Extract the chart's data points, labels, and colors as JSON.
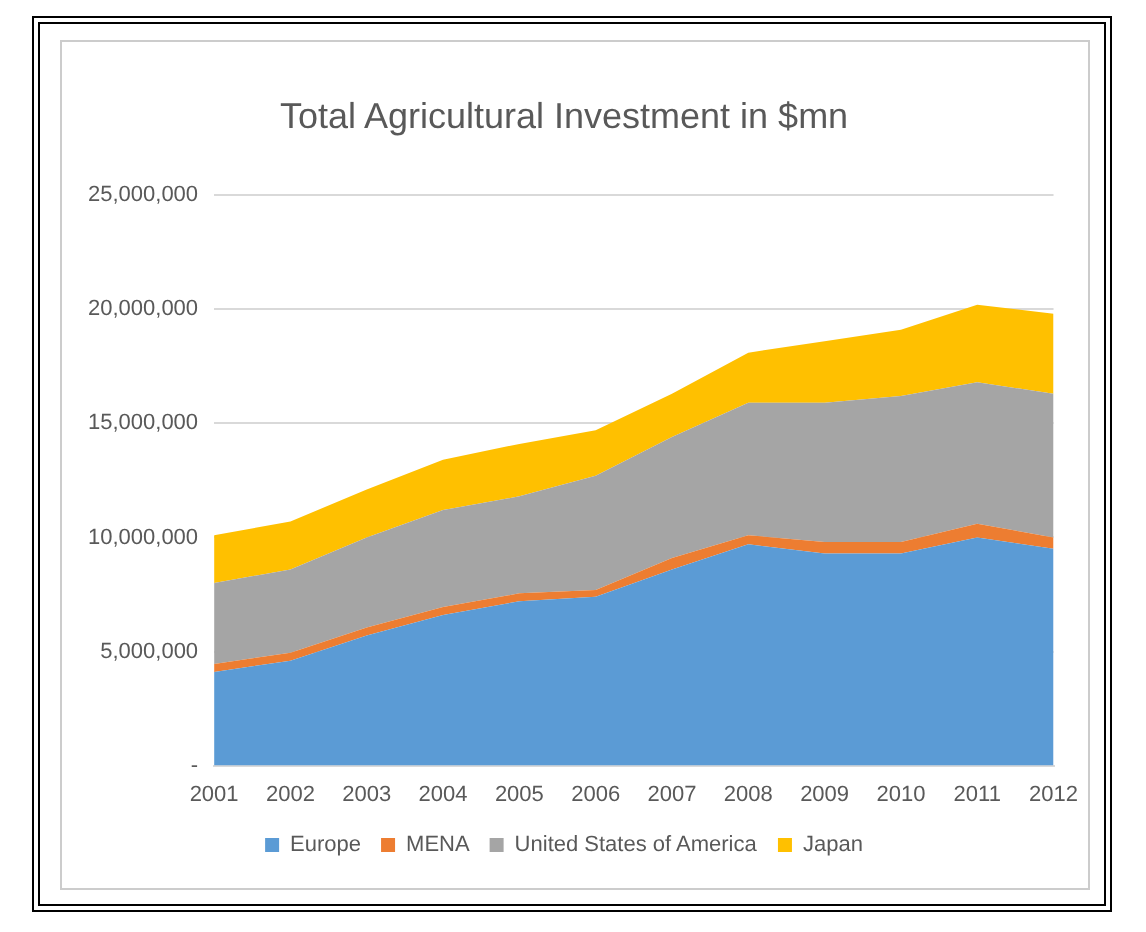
{
  "chart_data": {
    "type": "area",
    "title": "Total Agricultural Investment in $mn",
    "stacked": true,
    "categories": [
      "2001",
      "2002",
      "2003",
      "2004",
      "2005",
      "2006",
      "2007",
      "2008",
      "2009",
      "2010",
      "2011",
      "2012"
    ],
    "series": [
      {
        "name": "Europe",
        "color": "#5b9bd5",
        "values": [
          4100000,
          4600000,
          5700000,
          6600000,
          7200000,
          7400000,
          8600000,
          9700000,
          9300000,
          9300000,
          10000000,
          9500000
        ]
      },
      {
        "name": "MENA",
        "color": "#ed7d31",
        "values": [
          350000,
          350000,
          350000,
          350000,
          350000,
          300000,
          500000,
          400000,
          500000,
          500000,
          600000,
          500000
        ]
      },
      {
        "name": "United States of America",
        "color": "#a5a5a5",
        "values": [
          3550000,
          3650000,
          3950000,
          4250000,
          4250000,
          5000000,
          5300000,
          5800000,
          6100000,
          6400000,
          6200000,
          6300000
        ]
      },
      {
        "name": "Japan",
        "color": "#ffc000",
        "values": [
          2100000,
          2100000,
          2100000,
          2200000,
          2300000,
          2000000,
          1900000,
          2200000,
          2700000,
          2900000,
          3400000,
          3500000
        ]
      }
    ],
    "ylim": [
      0,
      25000000
    ],
    "yticks": [
      {
        "value": 0,
        "label": "-"
      },
      {
        "value": 5000000,
        "label": "5,000,000"
      },
      {
        "value": 10000000,
        "label": "10,000,000"
      },
      {
        "value": 15000000,
        "label": "15,000,000"
      },
      {
        "value": 20000000,
        "label": "20,000,000"
      },
      {
        "value": 25000000,
        "label": "25,000,000"
      }
    ],
    "grid": "y",
    "legend": "bottom",
    "marker": "none"
  }
}
